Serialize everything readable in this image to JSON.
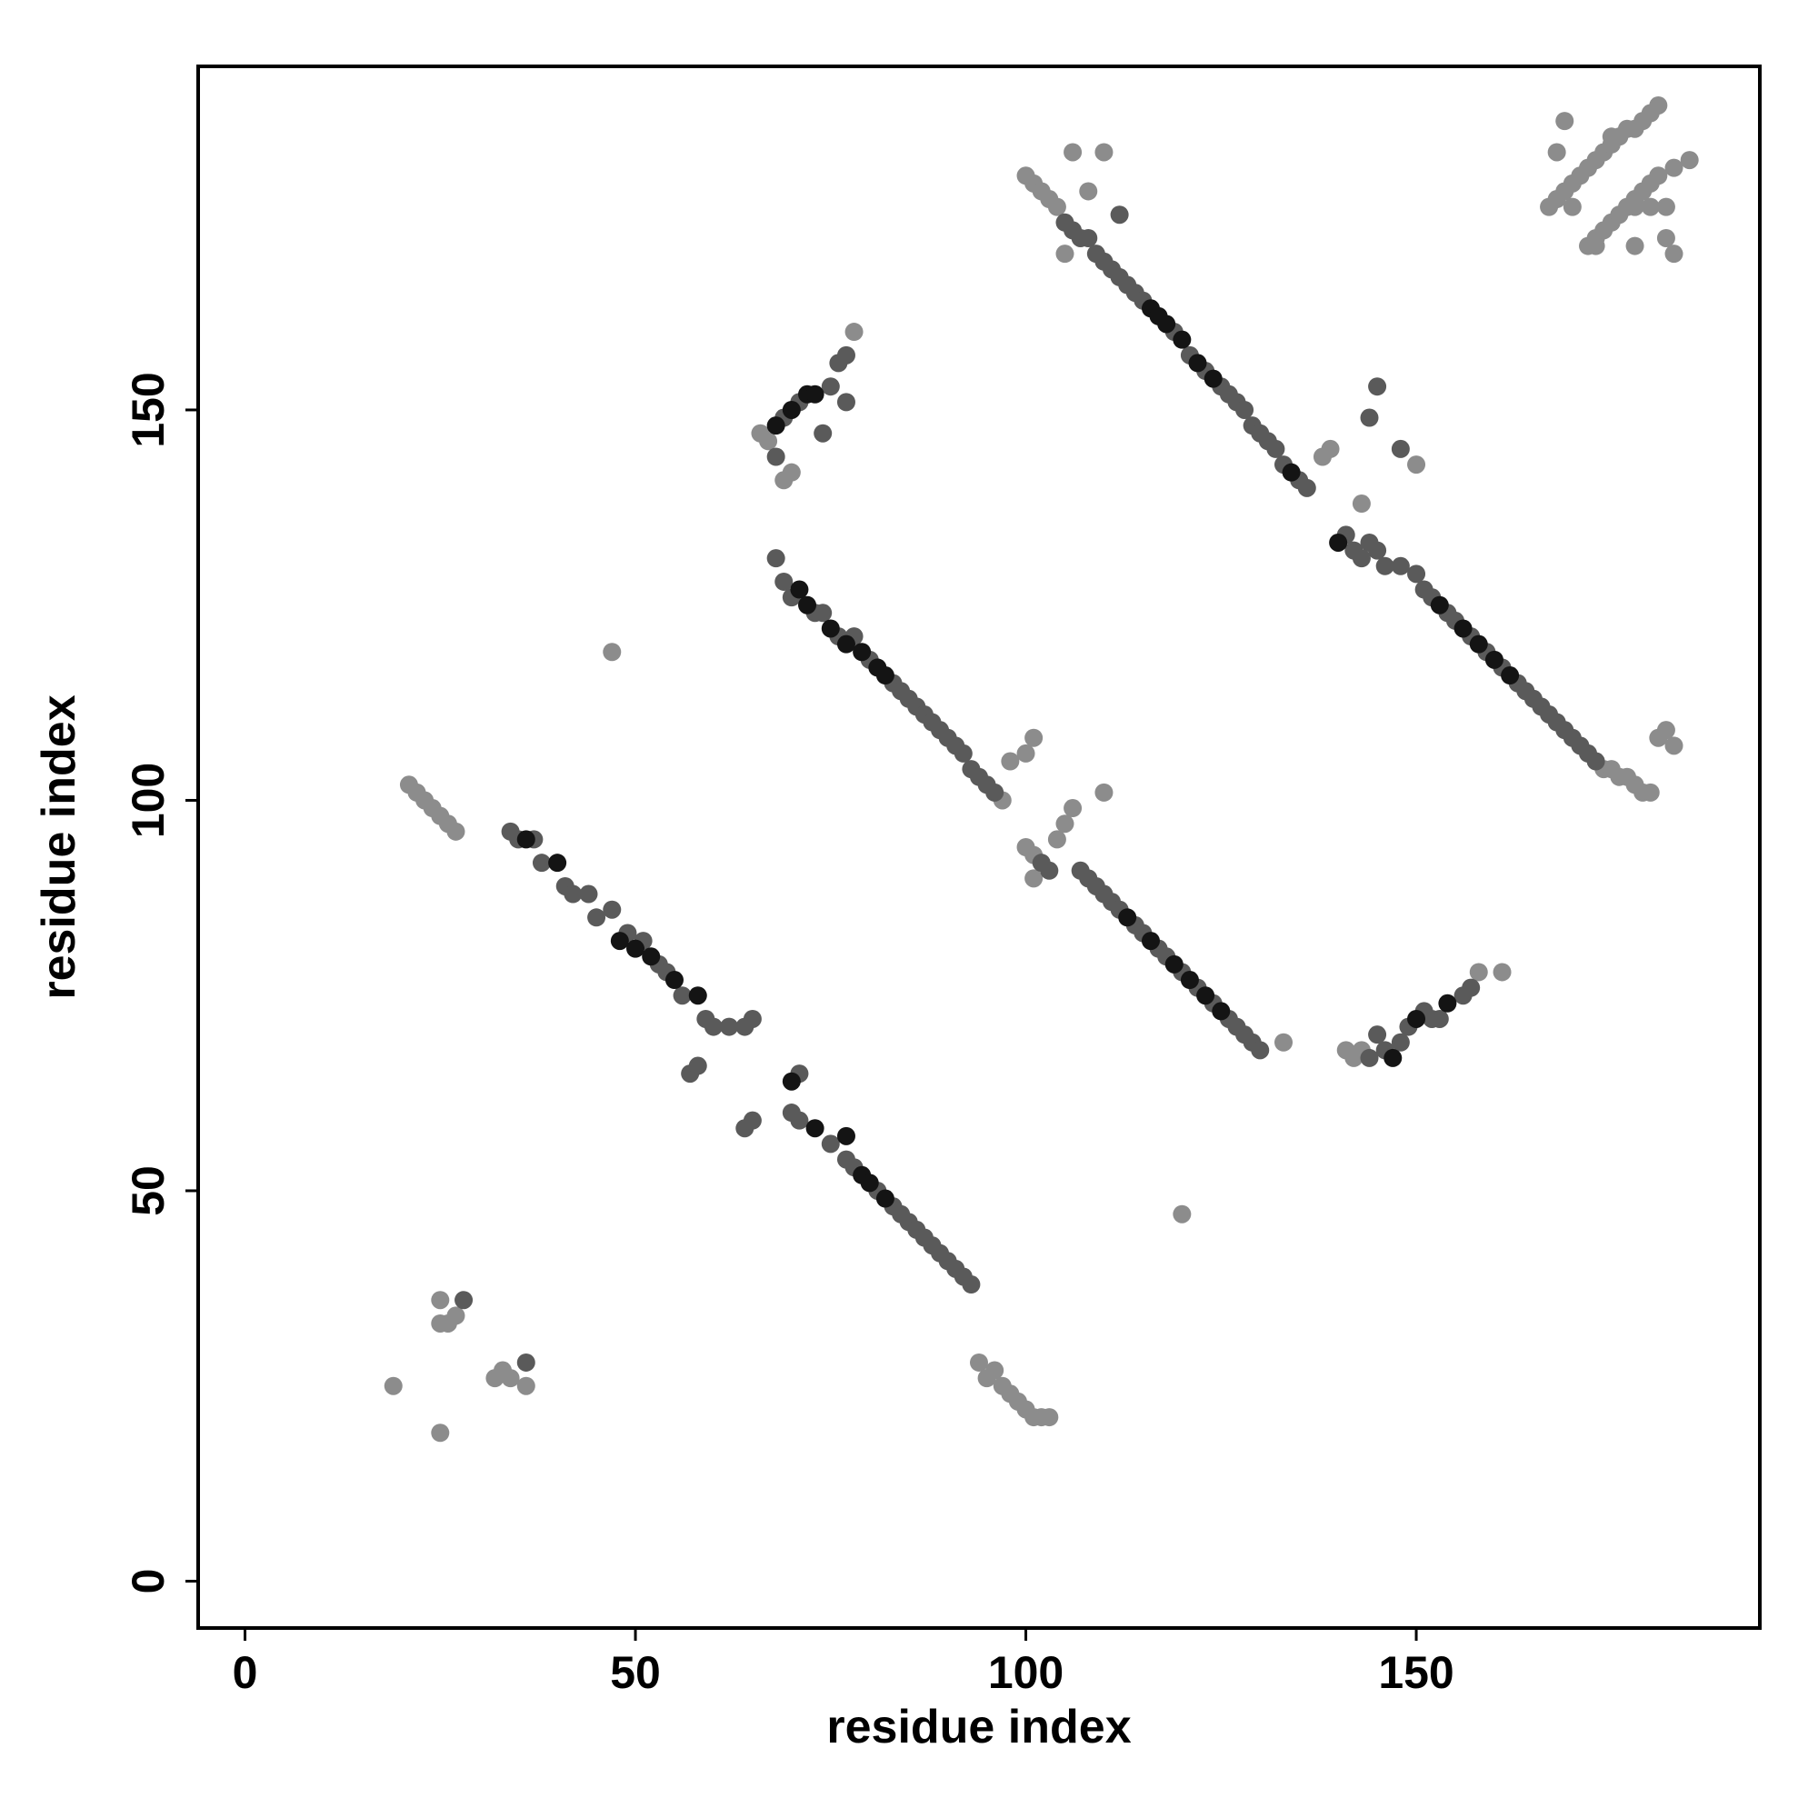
{
  "chart_data": {
    "type": "scatter",
    "x_label": "residue index",
    "y_label": "residue index",
    "xlim": [
      -6,
      194
    ],
    "ylim": [
      -6,
      194
    ],
    "xticks": [
      0,
      50,
      100,
      150
    ],
    "yticks": [
      0,
      50,
      100,
      150
    ],
    "series": [
      {
        "color": "#8c8c8c",
        "x": [
          21,
          22,
          23,
          24,
          25,
          26,
          27,
          94,
          95,
          96,
          97,
          98,
          99,
          100,
          101,
          102,
          103,
          97,
          98,
          100,
          101,
          47,
          66,
          67,
          69,
          70,
          78,
          100,
          101,
          102,
          103,
          104,
          106,
          110,
          108,
          105,
          138,
          139,
          181,
          182,
          183,
          143,
          150,
          100,
          101,
          104,
          105,
          106,
          110,
          101,
          133,
          141,
          142,
          143,
          161,
          158,
          120,
          19,
          25,
          25,
          26,
          27,
          25,
          32,
          33,
          34,
          36,
          167,
          168,
          169,
          170,
          171,
          172,
          173,
          174,
          175,
          176,
          177,
          178,
          179,
          180,
          181,
          168,
          169,
          170,
          172,
          173,
          174,
          175,
          176,
          177,
          178,
          179,
          180,
          181,
          183,
          185,
          182,
          178,
          180,
          182,
          183,
          178,
          173,
          175,
          174,
          175,
          176,
          177,
          178,
          179,
          180
        ],
        "values": [
          102,
          101,
          100,
          99,
          98,
          97,
          96,
          28,
          26,
          27,
          25,
          24,
          23,
          22,
          21,
          21,
          21,
          100,
          105,
          106,
          108,
          119,
          147,
          146,
          141,
          142,
          160,
          180,
          179,
          178,
          177,
          176,
          183,
          183,
          178,
          170,
          144,
          145,
          108,
          109,
          107,
          138,
          143,
          94,
          93,
          95,
          97,
          99,
          101,
          90,
          69,
          68,
          67,
          68,
          78,
          78,
          47,
          25,
          19,
          33,
          33,
          34,
          36,
          26,
          27,
          26,
          25,
          176,
          177,
          178,
          179,
          180,
          181,
          182,
          183,
          184,
          185,
          186,
          186,
          187,
          188,
          189,
          183,
          187,
          176,
          171,
          172,
          173,
          174,
          175,
          176,
          177,
          178,
          179,
          180,
          181,
          182,
          176,
          176,
          176,
          172,
          170,
          171,
          171,
          185,
          104,
          104,
          103,
          103,
          102,
          101,
          101
        ]
      },
      {
        "color": "#5a5a5a",
        "x": [
          34,
          35,
          37,
          38,
          41,
          42,
          44,
          45,
          47,
          49,
          51,
          53,
          54,
          56,
          59,
          60,
          62,
          64,
          65,
          57,
          58,
          64,
          65,
          71,
          70,
          71,
          75,
          77,
          78,
          81,
          83,
          84,
          85,
          86,
          87,
          88,
          89,
          90,
          91,
          92,
          93,
          68,
          69,
          70,
          73,
          74,
          76,
          78,
          80,
          83,
          84,
          85,
          86,
          87,
          88,
          89,
          90,
          91,
          92,
          93,
          94,
          95,
          96,
          68,
          69,
          71,
          74,
          75,
          76,
          77,
          77,
          105,
          106,
          107,
          108,
          109,
          110,
          111,
          112,
          113,
          114,
          115,
          119,
          121,
          123,
          125,
          126,
          127,
          128,
          129,
          130,
          131,
          132,
          133,
          135,
          136,
          112,
          141,
          142,
          143,
          144,
          145,
          146,
          148,
          150,
          151,
          152,
          154,
          155,
          157,
          159,
          161,
          163,
          164,
          165,
          166,
          167,
          168,
          169,
          170,
          171,
          172,
          173,
          144,
          145,
          148,
          102,
          103,
          107,
          108,
          109,
          110,
          111,
          112,
          114,
          115,
          117,
          118,
          120,
          122,
          124,
          126,
          127,
          128,
          129,
          130,
          144,
          145,
          146,
          148,
          149,
          151,
          152,
          153,
          156,
          157,
          28,
          36
        ],
        "values": [
          96,
          95,
          95,
          92,
          89,
          88,
          88,
          85,
          86,
          83,
          82,
          79,
          78,
          75,
          72,
          71,
          71,
          71,
          72,
          65,
          66,
          58,
          59,
          65,
          60,
          59,
          56,
          54,
          53,
          50,
          48,
          47,
          46,
          45,
          44,
          43,
          42,
          41,
          40,
          39,
          38,
          131,
          128,
          126,
          124,
          124,
          121,
          121,
          118,
          115,
          114,
          113,
          112,
          111,
          110,
          109,
          108,
          107,
          106,
          104,
          103,
          102,
          101,
          144,
          149,
          151,
          147,
          153,
          156,
          157,
          151,
          174,
          173,
          172,
          172,
          170,
          169,
          168,
          167,
          166,
          165,
          164,
          160,
          157,
          155,
          153,
          152,
          151,
          150,
          148,
          147,
          146,
          145,
          143,
          141,
          140,
          175,
          134,
          132,
          131,
          133,
          132,
          130,
          130,
          129,
          127,
          126,
          124,
          123,
          121,
          119,
          117,
          115,
          114,
          113,
          112,
          111,
          110,
          109,
          108,
          107,
          106,
          105,
          149,
          153,
          145,
          92,
          91,
          91,
          90,
          89,
          88,
          87,
          86,
          84,
          83,
          81,
          80,
          78,
          76,
          74,
          72,
          71,
          70,
          69,
          68,
          67,
          70,
          68,
          69,
          71,
          73,
          72,
          72,
          75,
          76,
          36,
          28
        ]
      },
      {
        "color": "#141414",
        "x": [
          36,
          40,
          48,
          50,
          52,
          55,
          58,
          70,
          73,
          77,
          79,
          80,
          82,
          71,
          72,
          75,
          77,
          79,
          81,
          82,
          72,
          73,
          70,
          68,
          116,
          117,
          118,
          120,
          122,
          124,
          134,
          140,
          153,
          156,
          158,
          160,
          162,
          113,
          116,
          119,
          121,
          123,
          125,
          150,
          154,
          147
        ],
        "values": [
          95,
          92,
          82,
          81,
          80,
          77,
          75,
          64,
          58,
          57,
          52,
          51,
          49,
          127,
          125,
          122,
          120,
          119,
          117,
          116,
          152,
          152,
          150,
          148,
          163,
          162,
          161,
          159,
          156,
          154,
          142,
          133,
          125,
          122,
          120,
          118,
          116,
          85,
          82,
          79,
          77,
          75,
          73,
          72,
          74,
          67
        ]
      }
    ]
  }
}
